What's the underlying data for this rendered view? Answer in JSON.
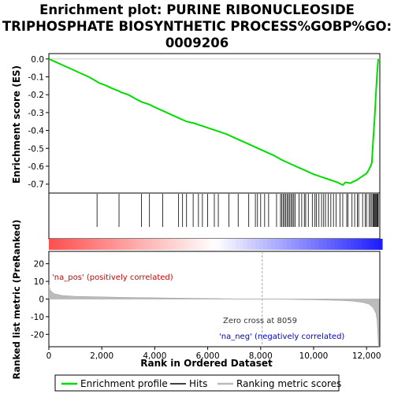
{
  "chart_data": {
    "type": "line",
    "title_lines": [
      "Enrichment plot: PURINE RIBONUCLEOSIDE",
      "TRIPHOSPHATE BIOSYNTHETIC PROCESS%GOBP%GO:",
      "0009206"
    ],
    "xlabel": "Rank in Ordered Dataset",
    "x_range": [
      0,
      12500
    ],
    "x_ticks": [
      0,
      2000,
      4000,
      6000,
      8000,
      10000,
      12000
    ],
    "x_tick_labels": [
      "0",
      "2,000",
      "4,000",
      "6,000",
      "8,000",
      "10,000",
      "12,000"
    ],
    "enrichment_panel": {
      "ylabel": "Enrichment score (ES)",
      "y_range": [
        -0.75,
        0.03
      ],
      "y_ticks": [
        0.0,
        -0.1,
        -0.2,
        -0.3,
        -0.4,
        -0.5,
        -0.6,
        -0.7
      ],
      "y_tick_labels": [
        "0.0",
        "-0.1",
        "-0.2",
        "-0.3",
        "-0.4",
        "-0.5",
        "-0.6",
        "-0.7"
      ],
      "series_name": "Enrichment profile",
      "line_color": "#00dd00",
      "es_curve": [
        [
          0,
          0.0
        ],
        [
          300,
          -0.02
        ],
        [
          600,
          -0.04
        ],
        [
          900,
          -0.06
        ],
        [
          1200,
          -0.08
        ],
        [
          1500,
          -0.1
        ],
        [
          1800,
          -0.125
        ],
        [
          1850,
          -0.13
        ],
        [
          1900,
          -0.135
        ],
        [
          2100,
          -0.145
        ],
        [
          2400,
          -0.165
        ],
        [
          2650,
          -0.18
        ],
        [
          2700,
          -0.185
        ],
        [
          3000,
          -0.2
        ],
        [
          3300,
          -0.225
        ],
        [
          3500,
          -0.24
        ],
        [
          3800,
          -0.255
        ],
        [
          4000,
          -0.27
        ],
        [
          4300,
          -0.29
        ],
        [
          4600,
          -0.31
        ],
        [
          4900,
          -0.33
        ],
        [
          5050,
          -0.34
        ],
        [
          5200,
          -0.35
        ],
        [
          5500,
          -0.36
        ],
        [
          5800,
          -0.375
        ],
        [
          6100,
          -0.39
        ],
        [
          6400,
          -0.405
        ],
        [
          6700,
          -0.42
        ],
        [
          7000,
          -0.44
        ],
        [
          7300,
          -0.46
        ],
        [
          7600,
          -0.48
        ],
        [
          7900,
          -0.5
        ],
        [
          8200,
          -0.52
        ],
        [
          8500,
          -0.54
        ],
        [
          8800,
          -0.565
        ],
        [
          9100,
          -0.585
        ],
        [
          9400,
          -0.605
        ],
        [
          9700,
          -0.625
        ],
        [
          10000,
          -0.645
        ],
        [
          10300,
          -0.66
        ],
        [
          10600,
          -0.675
        ],
        [
          10900,
          -0.69
        ],
        [
          11100,
          -0.705
        ],
        [
          11200,
          -0.69
        ],
        [
          11400,
          -0.695
        ],
        [
          11500,
          -0.685
        ],
        [
          11600,
          -0.68
        ],
        [
          11700,
          -0.67
        ],
        [
          11800,
          -0.66
        ],
        [
          11900,
          -0.65
        ],
        [
          12000,
          -0.64
        ],
        [
          12080,
          -0.62
        ],
        [
          12150,
          -0.6
        ],
        [
          12200,
          -0.58
        ],
        [
          12250,
          -0.45
        ],
        [
          12300,
          -0.34
        ],
        [
          12350,
          -0.2
        ],
        [
          12400,
          -0.08
        ],
        [
          12440,
          0.0
        ]
      ]
    },
    "hits_panel": {
      "hit_ranks": [
        1820,
        2650,
        3500,
        3800,
        4300,
        4900,
        5050,
        5200,
        5450,
        5650,
        5800,
        6000,
        6250,
        6400,
        6800,
        7150,
        7550,
        7800,
        7880,
        8000,
        8150,
        8300,
        8600,
        8750,
        8800,
        8850,
        8900,
        8950,
        9000,
        9050,
        9100,
        9150,
        9200,
        9250,
        9300,
        9450,
        9550,
        9650,
        9700,
        9800,
        9950,
        10050,
        10100,
        10200,
        10300,
        10380,
        10450,
        10550,
        10650,
        10750,
        10850,
        11000,
        11100,
        11250,
        11300,
        11450,
        11550,
        11650,
        11700,
        11850,
        11950,
        12000,
        12100,
        12150,
        12200,
        12250,
        12280,
        12300,
        12330,
        12360,
        12390,
        12420,
        12440
      ]
    },
    "ranking_panel": {
      "ylabel": "Ranked list metric (PreRanked)",
      "y_range": [
        -27,
        27
      ],
      "y_ticks": [
        20,
        10,
        0,
        -10,
        -20
      ],
      "y_tick_labels": [
        "20",
        "10",
        "0",
        "-10",
        "-20"
      ],
      "series_name": "Ranking metric scores",
      "metric_curve": [
        [
          0,
          8
        ],
        [
          50,
          5
        ],
        [
          200,
          3
        ],
        [
          500,
          2
        ],
        [
          1000,
          1.5
        ],
        [
          2000,
          1.2
        ],
        [
          3000,
          0.9
        ],
        [
          4000,
          0.7
        ],
        [
          5000,
          0.5
        ],
        [
          6000,
          0.3
        ],
        [
          7000,
          0.15
        ],
        [
          8059,
          0.0
        ],
        [
          9000,
          -0.2
        ],
        [
          10000,
          -0.4
        ],
        [
          11000,
          -0.8
        ],
        [
          11500,
          -1.2
        ],
        [
          11900,
          -2
        ],
        [
          12100,
          -3
        ],
        [
          12250,
          -5
        ],
        [
          12350,
          -8
        ],
        [
          12400,
          -12
        ],
        [
          12450,
          -27
        ],
        [
          12480,
          -27
        ]
      ],
      "pos_label": "'na_pos' (positively correlated)",
      "neg_label": "'na_neg' (negatively correlated)",
      "zero_cross_label": "Zero cross at 8059",
      "zero_cross_rank": 8059,
      "pos_label_color": "#cc0000",
      "neg_label_color": "#0000cc"
    },
    "legend": {
      "items": [
        {
          "label": "Enrichment profile",
          "color": "#00dd00"
        },
        {
          "label": "Hits",
          "color": "#000000"
        },
        {
          "label": "Ranking metric scores",
          "color": "#bbbbbb"
        }
      ]
    }
  }
}
